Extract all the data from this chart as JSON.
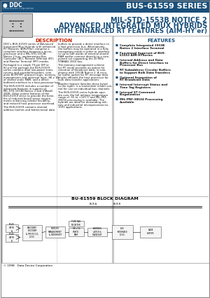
{
  "header_bg": "#1a4f7a",
  "header_text": "BUS-61559 SERIES",
  "title_line1": "MIL-STD-1553B NOTICE 2",
  "title_line2": "ADVANCED INTEGRATED MUX HYBRIDS",
  "title_line3": "WITH ENHANCED RT FEATURES (AIM-HY'er)",
  "title_color": "#1a4f7a",
  "section_desc_title": "DESCRIPTION",
  "section_feat_title": "FEATURES",
  "desc_col1": [
    "DDC's BUS-61559 series of Advanced",
    "Integrated Mux Hybrids with enhanced",
    "RT Features (AIM-HYer) comprise a",
    "complete interface between a micro-",
    "processor and a MIL-STD-1553B",
    "Notice 2 bus, implementing Bus",
    "Controller (BC), Remote Terminal (RT),",
    "and Monitor Terminal (MT) modes.",
    "",
    "Packaged in a single 79-pin DIP or",
    "82-pin flat package the BUS-61559",
    "series contains dual low-power trans-",
    "ceivers and encoder/decoders, com-",
    "plete BC/RT/MT protocol logic, memory",
    "management and interrupt logic, 8K x 16",
    "of shared static RAM, and a direct",
    "buffered interface to a host-processor bus.",
    "",
    "The BUS-61559 includes a number of",
    "advanced features in support of",
    "MIL-STD-1553B Notice 2 and STAnaD",
    "3838. Other patent features of the",
    "BUS-61559 serve to provide the bene-",
    "fits of reduced board space require-",
    "ments enhancing release flexibility,",
    "and reduced host processor overhead.",
    "",
    "The BUS-61559 contains internal",
    "address latches and bidirectional data"
  ],
  "desc_col2": [
    "buffers to provide a direct interface to",
    "a host processor bus. Alternatively,",
    "the buffers may be operated in a fully",
    "transparent mode in order to interface",
    "to up to 64K words of external shared",
    "RAM and/or connect directly to a com-",
    "ponent set supporting the 20 MHz",
    "STANAG-3910 bus.",
    "",
    "The memory management scheme",
    "for RT mode provides an option for",
    "retention of broadcast data, in com-",
    "pliance with 1553B Notice 2. A circu-",
    "lar buffer option for RT message data",
    "blocks offloads the host processor for",
    "bulk data transfer applications.",
    "",
    "Another feature (besides those listed",
    "to the right), is a transmitter inhibit con-",
    "trol for use on individual bus channels.",
    "",
    "The BUS-61559 series hybrids oper-",
    "ate over the full military temperature",
    "range of -55 to +125°C and MIL-PRF-",
    "38534 processing is available. The",
    "hybrids are ideal for demanding mili-",
    "tary and industrial microprocessor-to-",
    "1553 applications."
  ],
  "features": [
    "Complete Integrated 1553B\nNotice 2 Interface Terminal",
    "Functional Superset of BUS-\n61553 AIM-HYSeries",
    "Internal Address and Data\nBuffers for Direct Interface to\nProcessor Bus",
    "RT Subaddress Circular Buffers\nto Support Bulk Data Transfers",
    "Optional Separation of\nRT Broadcast Data",
    "Internal Interrupt Status and\nTime Tag Registers",
    "Internal ST Command\nIllegalization",
    "MIL-PRF-38534 Processing\nAvailable"
  ],
  "block_diagram_title": "BU-61559 BLOCK DIAGRAM",
  "footer_text": "© 1998   Data Device Corporation",
  "bg_color": "#ffffff",
  "feat_color": "#1a4f7a",
  "desc_title_color": "#cc2200",
  "text_color": "#111111"
}
